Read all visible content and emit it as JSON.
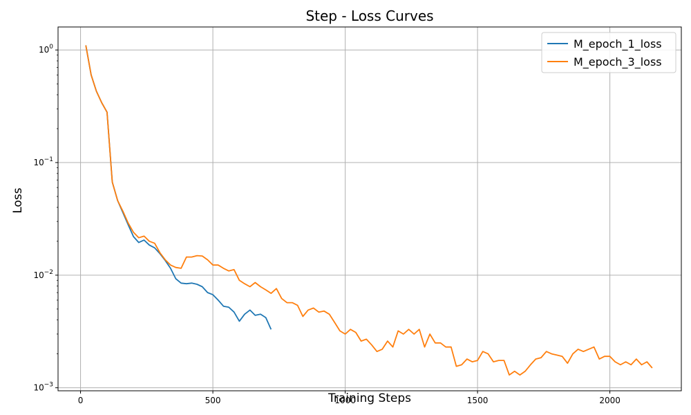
{
  "chart_data": {
    "type": "line",
    "title": "Step - Loss Curves",
    "xlabel": "Training Steps",
    "ylabel": "Loss",
    "yscale": "log",
    "xlim": [
      -85,
      2270
    ],
    "ylim": [
      0.00094,
      1.6
    ],
    "xticks": [
      0,
      500,
      1000,
      1500,
      2000
    ],
    "xtick_labels": [
      "0",
      "500",
      "1000",
      "1500",
      "2000"
    ],
    "yticks": [
      0.001,
      0.01,
      0.1,
      1
    ],
    "ytick_base": "10",
    "ytick_exponents": [
      "−3",
      "−2",
      "−1",
      "0"
    ],
    "grid": true,
    "legend_position": "top-right",
    "series": [
      {
        "name": "M_epoch_1_loss",
        "color": "#1f77b4",
        "x": [
          20,
          40,
          60,
          80,
          100,
          120,
          140,
          160,
          180,
          200,
          220,
          240,
          260,
          280,
          300,
          320,
          340,
          360,
          380,
          400,
          420,
          440,
          460,
          480,
          500,
          520,
          540,
          560,
          580,
          600,
          620,
          640,
          660,
          680,
          700,
          720
        ],
        "y": [
          1.1,
          0.6,
          0.43,
          0.34,
          0.28,
          0.067,
          0.046,
          0.036,
          0.028,
          0.022,
          0.0195,
          0.0205,
          0.0185,
          0.0175,
          0.0155,
          0.0135,
          0.0115,
          0.0093,
          0.0085,
          0.0084,
          0.0085,
          0.0083,
          0.0079,
          0.007,
          0.0067,
          0.006,
          0.0053,
          0.0052,
          0.0047,
          0.0039,
          0.0045,
          0.0049,
          0.0044,
          0.0045,
          0.0042,
          0.0033
        ]
      },
      {
        "name": "M_epoch_3_loss",
        "color": "#ff7f0e",
        "x": [
          20,
          40,
          60,
          80,
          100,
          120,
          140,
          160,
          180,
          200,
          220,
          240,
          260,
          280,
          300,
          320,
          340,
          360,
          380,
          400,
          420,
          440,
          460,
          480,
          500,
          520,
          540,
          560,
          580,
          600,
          620,
          640,
          660,
          680,
          700,
          720,
          740,
          760,
          780,
          800,
          820,
          840,
          860,
          880,
          900,
          920,
          940,
          960,
          980,
          1000,
          1020,
          1040,
          1060,
          1080,
          1100,
          1120,
          1140,
          1160,
          1180,
          1200,
          1220,
          1240,
          1260,
          1280,
          1300,
          1320,
          1340,
          1360,
          1380,
          1400,
          1420,
          1440,
          1460,
          1480,
          1500,
          1520,
          1540,
          1560,
          1580,
          1600,
          1620,
          1640,
          1660,
          1680,
          1700,
          1720,
          1740,
          1760,
          1780,
          1800,
          1820,
          1840,
          1860,
          1880,
          1900,
          1920,
          1940,
          1960,
          1980,
          2000,
          2020,
          2040,
          2060,
          2080,
          2100,
          2120,
          2140,
          2160
        ],
        "y": [
          1.1,
          0.6,
          0.43,
          0.34,
          0.28,
          0.067,
          0.046,
          0.037,
          0.029,
          0.024,
          0.0215,
          0.0222,
          0.02,
          0.0192,
          0.0158,
          0.0137,
          0.0123,
          0.0117,
          0.0115,
          0.0145,
          0.0145,
          0.0149,
          0.0148,
          0.0137,
          0.0123,
          0.0123,
          0.0115,
          0.0109,
          0.0112,
          0.009,
          0.0084,
          0.0079,
          0.0086,
          0.0079,
          0.0074,
          0.0069,
          0.0076,
          0.0062,
          0.0057,
          0.0057,
          0.0054,
          0.0043,
          0.0049,
          0.0051,
          0.0047,
          0.0048,
          0.0045,
          0.0038,
          0.0032,
          0.003,
          0.0033,
          0.0031,
          0.0026,
          0.0027,
          0.0024,
          0.0021,
          0.0022,
          0.0026,
          0.0023,
          0.0032,
          0.003,
          0.0033,
          0.003,
          0.0033,
          0.0023,
          0.003,
          0.0025,
          0.0025,
          0.0023,
          0.0023,
          0.00155,
          0.0016,
          0.0018,
          0.0017,
          0.00175,
          0.0021,
          0.002,
          0.0017,
          0.00175,
          0.00175,
          0.0013,
          0.0014,
          0.0013,
          0.0014,
          0.0016,
          0.0018,
          0.00185,
          0.0021,
          0.002,
          0.00195,
          0.0019,
          0.00165,
          0.002,
          0.0022,
          0.0021,
          0.0022,
          0.0023,
          0.0018,
          0.0019,
          0.0019,
          0.0017,
          0.0016,
          0.0017,
          0.0016,
          0.0018,
          0.0016,
          0.0017,
          0.0015
        ]
      }
    ]
  }
}
